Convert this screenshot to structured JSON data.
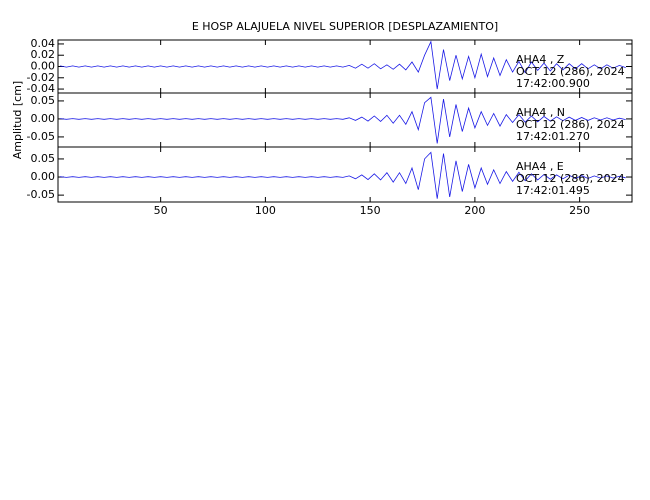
{
  "chart_data": [
    {
      "type": "line",
      "title": "E HOSP ALAJUELA NIVEL SUPERIOR [DESPLAZAMIENTO]",
      "annotations": [
        "AHA4 , Z",
        "OCT 12 (286), 2024",
        "17:42:00.900"
      ],
      "xlim": [
        1,
        275
      ],
      "ylim": [
        -0.047,
        0.047
      ],
      "yticks": [
        0.04,
        0.02,
        {
          "value": 0,
          "label": "0.00"
        },
        -0.02,
        -0.04
      ],
      "x": [
        2,
        5,
        8,
        11,
        14,
        17,
        20,
        23,
        26,
        29,
        32,
        35,
        38,
        41,
        44,
        47,
        50,
        53,
        56,
        59,
        62,
        65,
        68,
        71,
        74,
        77,
        80,
        83,
        86,
        89,
        92,
        95,
        98,
        101,
        104,
        107,
        110,
        113,
        116,
        119,
        122,
        125,
        128,
        131,
        134,
        137,
        140,
        143,
        146,
        149,
        152,
        155,
        158,
        161,
        164,
        167,
        170,
        173,
        176,
        179,
        182,
        185,
        188,
        191,
        194,
        197,
        200,
        203,
        206,
        209,
        212,
        215,
        218,
        221,
        224,
        227,
        230,
        233,
        236,
        239,
        242,
        245,
        248,
        251,
        254,
        257,
        260,
        263,
        266,
        269,
        272
      ],
      "color": "#1a1ae6",
      "values": [
        0.001,
        -0.001,
        0.001,
        -0.001,
        0.001,
        -0.001,
        0.001,
        -0.001,
        0.001,
        -0.001,
        0.001,
        -0.001,
        0.001,
        -0.001,
        0.001,
        -0.001,
        0.001,
        -0.001,
        0.001,
        -0.001,
        0.001,
        -0.001,
        0.001,
        -0.001,
        0.001,
        -0.001,
        0.001,
        -0.001,
        0.001,
        -0.001,
        0.001,
        -0.001,
        0.001,
        -0.001,
        0.001,
        -0.001,
        0.001,
        -0.001,
        0.001,
        -0.001,
        0.001,
        -0.001,
        0.001,
        -0.001,
        0.001,
        -0.001,
        0.002,
        -0.003,
        0.004,
        -0.003,
        0.005,
        -0.004,
        0.003,
        -0.005,
        0.004,
        -0.006,
        0.008,
        -0.01,
        0.02,
        0.044,
        -0.04,
        0.03,
        -0.025,
        0.02,
        -0.022,
        0.018,
        -0.02,
        0.022,
        -0.018,
        0.015,
        -0.016,
        0.012,
        -0.01,
        0.009,
        -0.011,
        0.008,
        -0.007,
        0.006,
        -0.008,
        0.005,
        -0.006,
        0.005,
        -0.004,
        0.005,
        -0.004,
        0.003,
        -0.004,
        0.003,
        -0.003,
        0.002,
        -0.002
      ]
    },
    {
      "type": "line",
      "y_label": "Amplitud [cm]",
      "annotations": [
        "AHA4 , N",
        "OCT 12 (286), 2024",
        "17:42:01.270"
      ],
      "xlim": [
        1,
        275
      ],
      "ylim": [
        -0.078,
        0.072
      ],
      "yticks": [
        0.05,
        {
          "value": 0,
          "label": "0.00"
        },
        -0.05
      ],
      "x": [
        2,
        5,
        8,
        11,
        14,
        17,
        20,
        23,
        26,
        29,
        32,
        35,
        38,
        41,
        44,
        47,
        50,
        53,
        56,
        59,
        62,
        65,
        68,
        71,
        74,
        77,
        80,
        83,
        86,
        89,
        92,
        95,
        98,
        101,
        104,
        107,
        110,
        113,
        116,
        119,
        122,
        125,
        128,
        131,
        134,
        137,
        140,
        143,
        146,
        149,
        152,
        155,
        158,
        161,
        164,
        167,
        170,
        173,
        176,
        179,
        182,
        185,
        188,
        191,
        194,
        197,
        200,
        203,
        206,
        209,
        212,
        215,
        218,
        221,
        224,
        227,
        230,
        233,
        236,
        239,
        242,
        245,
        248,
        251,
        254,
        257,
        260,
        263,
        266,
        269,
        272
      ],
      "color": "#1a1ae6",
      "values": [
        0.001,
        -0.001,
        0.001,
        -0.001,
        0.001,
        -0.001,
        0.001,
        -0.001,
        0.001,
        -0.001,
        0.001,
        -0.001,
        0.001,
        -0.001,
        0.001,
        -0.001,
        0.001,
        -0.001,
        0.001,
        -0.001,
        0.001,
        -0.001,
        0.001,
        -0.001,
        0.001,
        -0.001,
        0.001,
        -0.001,
        0.001,
        -0.001,
        0.001,
        -0.001,
        0.001,
        -0.001,
        0.001,
        -0.001,
        0.001,
        -0.001,
        0.001,
        -0.001,
        0.001,
        -0.001,
        0.001,
        -0.001,
        0.001,
        -0.001,
        0.003,
        -0.004,
        0.005,
        -0.006,
        0.008,
        -0.007,
        0.01,
        -0.012,
        0.01,
        -0.015,
        0.02,
        -0.03,
        0.045,
        0.06,
        -0.068,
        0.055,
        -0.05,
        0.04,
        -0.035,
        0.03,
        -0.025,
        0.02,
        -0.018,
        0.015,
        -0.02,
        0.012,
        -0.01,
        0.012,
        -0.009,
        0.008,
        -0.008,
        0.007,
        -0.006,
        0.006,
        -0.005,
        0.005,
        -0.004,
        0.004,
        -0.004,
        0.003,
        -0.003,
        0.003,
        -0.003,
        0.002,
        -0.002
      ]
    },
    {
      "type": "line",
      "annotations": [
        "AHA4 , E",
        "OCT 12 (286), 2024",
        "17:42:01.495"
      ],
      "xlim": [
        1,
        275
      ],
      "ylim": [
        -0.069,
        0.083
      ],
      "yticks": [
        0.05,
        {
          "value": 0,
          "label": "0.00"
        },
        -0.05
      ],
      "xticks": [
        50,
        100,
        150,
        200,
        250
      ],
      "x": [
        2,
        5,
        8,
        11,
        14,
        17,
        20,
        23,
        26,
        29,
        32,
        35,
        38,
        41,
        44,
        47,
        50,
        53,
        56,
        59,
        62,
        65,
        68,
        71,
        74,
        77,
        80,
        83,
        86,
        89,
        92,
        95,
        98,
        101,
        104,
        107,
        110,
        113,
        116,
        119,
        122,
        125,
        128,
        131,
        134,
        137,
        140,
        143,
        146,
        149,
        152,
        155,
        158,
        161,
        164,
        167,
        170,
        173,
        176,
        179,
        182,
        185,
        188,
        191,
        194,
        197,
        200,
        203,
        206,
        209,
        212,
        215,
        218,
        221,
        224,
        227,
        230,
        233,
        236,
        239,
        242,
        245,
        248,
        251,
        254,
        257,
        260,
        263,
        266,
        269,
        272
      ],
      "color": "#1a1ae6",
      "values": [
        0.001,
        -0.001,
        0.001,
        -0.001,
        0.001,
        -0.001,
        0.001,
        -0.001,
        0.001,
        -0.001,
        0.001,
        -0.001,
        0.001,
        -0.001,
        0.001,
        -0.001,
        0.001,
        -0.001,
        0.001,
        -0.001,
        0.001,
        -0.001,
        0.001,
        -0.001,
        0.001,
        -0.001,
        0.001,
        -0.001,
        0.001,
        -0.001,
        0.001,
        -0.001,
        0.001,
        -0.001,
        0.001,
        -0.001,
        0.001,
        -0.001,
        0.001,
        -0.001,
        0.001,
        -0.001,
        0.001,
        -0.001,
        0.001,
        -0.001,
        0.003,
        -0.005,
        0.006,
        -0.007,
        0.009,
        -0.008,
        0.012,
        -0.014,
        0.012,
        -0.018,
        0.025,
        -0.035,
        0.05,
        0.068,
        -0.06,
        0.065,
        -0.055,
        0.045,
        -0.04,
        0.035,
        -0.03,
        0.025,
        -0.02,
        0.02,
        -0.018,
        0.015,
        -0.012,
        0.013,
        -0.01,
        0.009,
        -0.008,
        0.007,
        -0.006,
        0.006,
        -0.005,
        0.005,
        -0.004,
        0.004,
        -0.004,
        0.003,
        -0.003,
        0.003,
        -0.003,
        0.002,
        -0.002
      ]
    }
  ]
}
